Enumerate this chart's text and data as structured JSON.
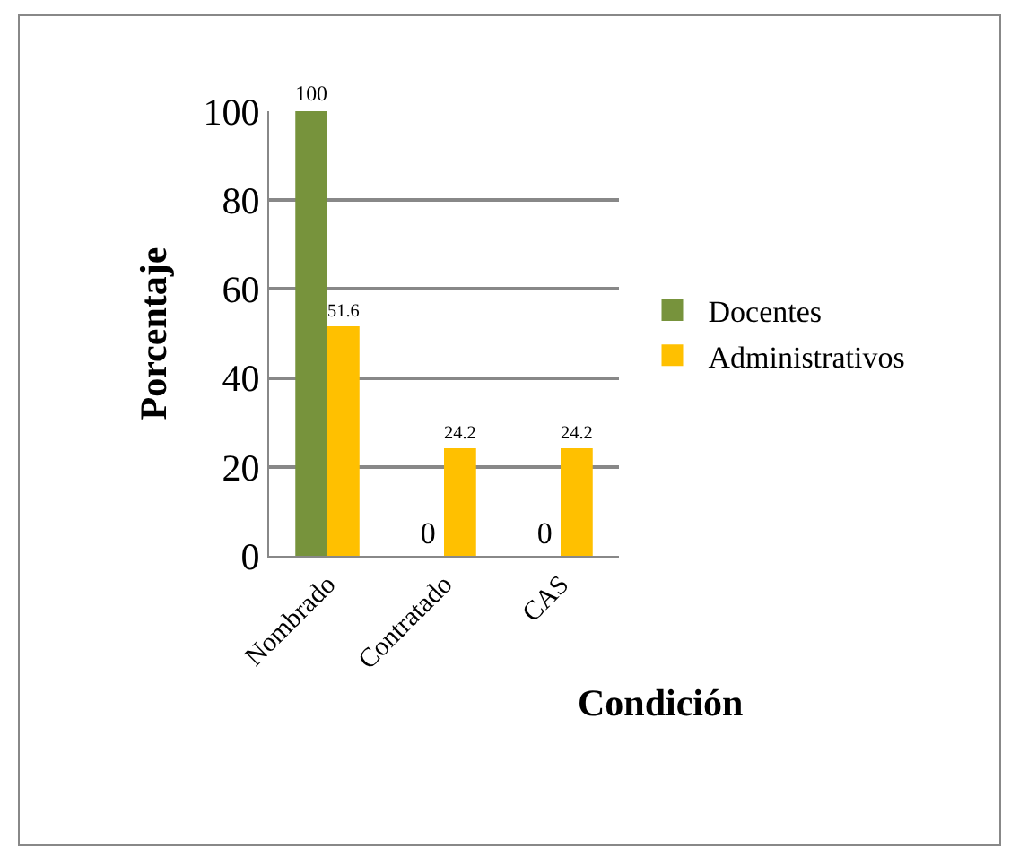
{
  "chart_data": {
    "type": "bar",
    "xlabel": "Condición",
    "ylabel": "Porcentaje",
    "categories": [
      "Nombrado",
      "Contratado",
      "CAS"
    ],
    "series": [
      {
        "name": "Docentes",
        "color": "#77933c",
        "values": [
          100,
          0,
          0
        ]
      },
      {
        "name": "Administrativos",
        "color": "#ffc000",
        "values": [
          51.6,
          24.2,
          24.2
        ]
      }
    ],
    "ylim": [
      0,
      100
    ],
    "yticks": [
      0,
      20,
      40,
      60,
      80,
      100
    ],
    "grid": "y",
    "legend": "right",
    "data_labels": true
  }
}
